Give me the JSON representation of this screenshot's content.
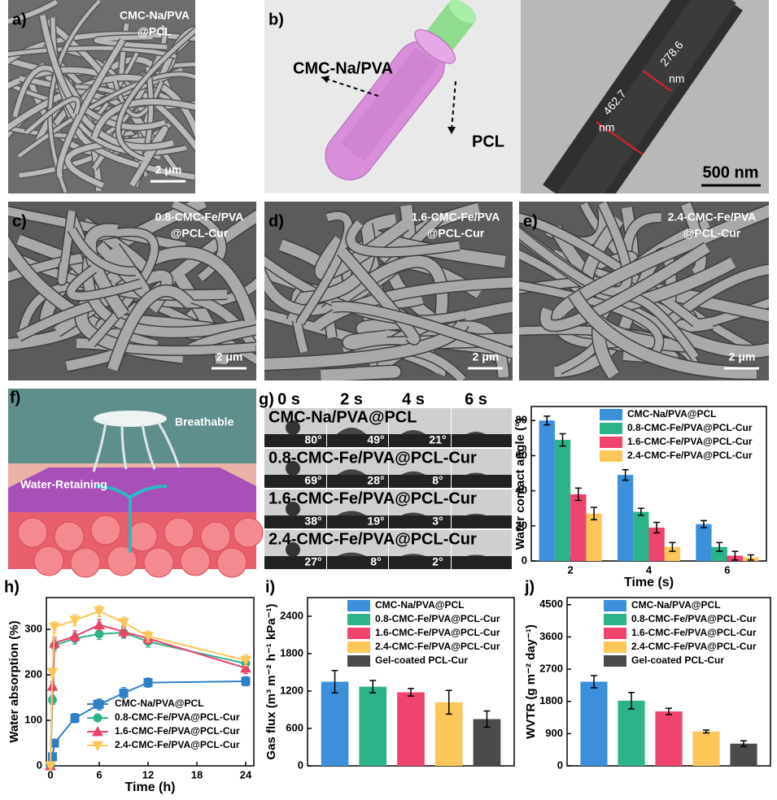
{
  "figure": {
    "a": {
      "letter": "a)",
      "label": [
        "CMC-Na/PVA",
        "@PCL"
      ],
      "scale": "2 μm"
    },
    "b": {
      "letter": "b)",
      "shell": "CMC-Na/PVA",
      "core": "PCL",
      "d_inner": [
        "278.6",
        "nm"
      ],
      "d_outer": [
        "462.7",
        "nm"
      ],
      "scale": "500 nm"
    },
    "c": {
      "letter": "c)",
      "label": [
        "0.8-CMC-Fe/PVA",
        "@PCL-Cur"
      ],
      "scale": "2 μm"
    },
    "d": {
      "letter": "d)",
      "label": [
        "1.6-CMC-Fe/PVA",
        "@PCL-Cur"
      ],
      "scale": "2 μm"
    },
    "e": {
      "letter": "e)",
      "label": [
        "2.4-CMC-Fe/PVA",
        "@PCL-Cur"
      ],
      "scale": "2 μm"
    },
    "f": {
      "letter": "f)",
      "top": "Breathable",
      "middle": "Water-Retaining"
    },
    "g": {
      "letter": "g)",
      "times": [
        "0 s",
        "2 s",
        "4 s",
        "6 s"
      ],
      "rows": [
        {
          "name": "CMC-Na/PVA@PCL",
          "angles": [
            "80°",
            "49°",
            "21°"
          ]
        },
        {
          "name": "0.8-CMC-Fe/PVA@PCL-Cur",
          "angles": [
            "69°",
            "28°",
            "8°"
          ]
        },
        {
          "name": "1.6-CMC-Fe/PVA@PCL-Cur",
          "angles": [
            "38°",
            "19°",
            "3°"
          ]
        },
        {
          "name": "2.4-CMC-Fe/PVA@PCL-Cur",
          "angles": [
            "27°",
            "8°",
            "2°"
          ]
        }
      ]
    }
  },
  "chart_data": [
    {
      "type": "bar",
      "x": [
        2,
        4,
        6
      ],
      "xlim": [
        1,
        7
      ],
      "xticks": [
        2,
        4,
        6
      ],
      "ylim": [
        0,
        88
      ],
      "yticks": [
        0,
        20,
        40,
        60,
        80
      ],
      "xlabel": "Time (s)",
      "ylabel": "Water contact angle (°)",
      "legend": "upper right",
      "series": [
        {
          "name": "CMC-Na/PVA@PCL",
          "color": "#3b8fdb",
          "values": [
            80,
            49,
            21
          ],
          "errors": [
            2.5,
            3,
            2
          ]
        },
        {
          "name": "0.8-CMC-Fe/PVA@PCL-Cur",
          "color": "#2db38a",
          "values": [
            69,
            28,
            8
          ],
          "errors": [
            3.5,
            2,
            2.5
          ]
        },
        {
          "name": "1.6-CMC-Fe/PVA@PCL-Cur",
          "color": "#f0436e",
          "values": [
            38,
            19,
            3
          ],
          "errors": [
            3.5,
            3,
            2.5
          ]
        },
        {
          "name": "2.4-CMC-Fe/PVA@PCL-Cur",
          "color": "#fdc65a",
          "values": [
            27,
            8,
            2
          ],
          "errors": [
            3.5,
            2.5,
            1.5
          ]
        }
      ]
    },
    {
      "type": "line",
      "letter": "h)",
      "x": [
        0,
        0.25,
        0.5,
        3,
        6,
        9,
        12,
        24
      ],
      "xlim": [
        -0.5,
        25
      ],
      "xticks": [
        0,
        6,
        12,
        18,
        24
      ],
      "ylim": [
        0,
        370
      ],
      "yticks": [
        0,
        100,
        200,
        300
      ],
      "xlabel": "Time (h)",
      "ylabel": "Water absorption (%)",
      "legend": "lower right",
      "series": [
        {
          "name": "CMC-Na/PVA@PCL",
          "color": "#2f7fc8",
          "marker": "square",
          "values": [
            0,
            20,
            50,
            105,
            135,
            160,
            183,
            186
          ],
          "errors": [
            2,
            5,
            8,
            10,
            12,
            12,
            10,
            10
          ]
        },
        {
          "name": "0.8-CMC-Fe/PVA@PCL-Cur",
          "color": "#2db38a",
          "marker": "circle",
          "values": [
            0,
            145,
            265,
            280,
            290,
            293,
            273,
            225
          ],
          "errors": [
            2,
            10,
            12,
            12,
            12,
            12,
            12,
            12
          ]
        },
        {
          "name": "1.6-CMC-Fe/PVA@PCL-Cur",
          "color": "#e8446a",
          "marker": "triangle",
          "values": [
            0,
            175,
            270,
            285,
            310,
            295,
            280,
            215
          ],
          "errors": [
            2,
            10,
            12,
            12,
            12,
            12,
            12,
            12
          ]
        },
        {
          "name": "2.4-CMC-Fe/PVA@PCL-Cur",
          "color": "#fdc65a",
          "marker": "triangle-down",
          "values": [
            0,
            205,
            305,
            320,
            340,
            315,
            285,
            232
          ],
          "errors": [
            2,
            10,
            12,
            12,
            12,
            12,
            12,
            12
          ]
        }
      ]
    },
    {
      "type": "bar",
      "letter": "i)",
      "categories": [
        null
      ],
      "ylim": [
        0,
        2700
      ],
      "yticks": [
        0,
        600,
        1200,
        1800,
        2400
      ],
      "ylabel": "Gas flux (m³ m⁻² h⁻¹ kPa⁻¹)",
      "legend": "upper right",
      "series": [
        {
          "name": "CMC-Na/PVA@PCL",
          "color": "#3b8fdb",
          "values": [
            1350
          ],
          "errors": [
            180
          ]
        },
        {
          "name": "0.8-CMC-Fe/PVA@PCL-Cur",
          "color": "#2db38a",
          "values": [
            1270
          ],
          "errors": [
            100
          ]
        },
        {
          "name": "1.6-CMC-Fe/PVA@PCL-Cur",
          "color": "#f0436e",
          "values": [
            1180
          ],
          "errors": [
            60
          ]
        },
        {
          "name": "2.4-CMC-Fe/PVA@PCL-Cur",
          "color": "#fdc65a",
          "values": [
            1020
          ],
          "errors": [
            190
          ]
        },
        {
          "name": "Gel-coated PCL-Cur",
          "color": "#4a4a4a",
          "values": [
            750
          ],
          "errors": [
            130
          ]
        }
      ]
    },
    {
      "type": "bar",
      "letter": "j)",
      "categories": [
        null
      ],
      "ylim": [
        0,
        4700
      ],
      "yticks": [
        0,
        900,
        1800,
        2700,
        3600,
        4500
      ],
      "ylabel": "WVTR (g m⁻² day⁻¹)",
      "legend": "upper right",
      "series": [
        {
          "name": "CMC-Na/PVA@PCL",
          "color": "#3b8fdb",
          "values": [
            2350
          ],
          "errors": [
            170
          ]
        },
        {
          "name": "0.8-CMC-Fe/PVA@PCL-Cur",
          "color": "#2db38a",
          "values": [
            1820
          ],
          "errors": [
            230
          ]
        },
        {
          "name": "1.6-CMC-Fe/PVA@PCL-Cur",
          "color": "#f0436e",
          "values": [
            1520
          ],
          "errors": [
            90
          ]
        },
        {
          "name": "2.4-CMC-Fe/PVA@PCL-Cur",
          "color": "#fdc65a",
          "values": [
            960
          ],
          "errors": [
            40
          ]
        },
        {
          "name": "Gel-coated PCL-Cur",
          "color": "#4a4a4a",
          "values": [
            620
          ],
          "errors": [
            80
          ]
        }
      ]
    }
  ]
}
